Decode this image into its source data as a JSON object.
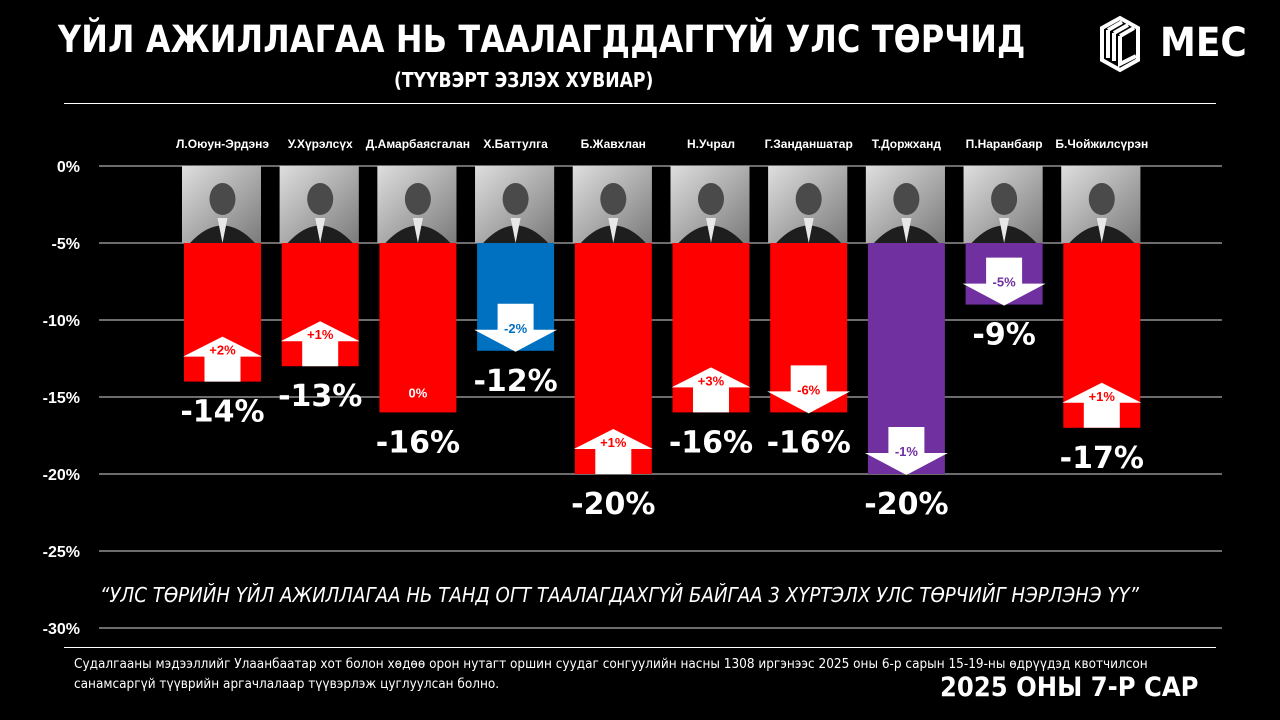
{
  "header": {
    "title": "ҮЙЛ АЖИЛЛАГАА НЬ ТААЛАГДДАГГҮЙ УЛС ТӨРЧИД",
    "subtitle": "(ТҮҮВЭРТ ЭЗЛЭХ ХУВИАР)",
    "logo_text": "MEC"
  },
  "question": "“УЛС ТӨРИЙН ҮЙЛ АЖИЛЛАГАА НЬ ТАНД ОГТ ТААЛАГДАХГҮЙ БАЙГАА 3 ХҮРТЭЛХ УЛС ТӨРЧИЙГ НЭРЛЭНЭ ҮҮ”",
  "footnote": {
    "line1": "Судалгааны мэдээллийг Улаанбаатар хот болон хөдөө орон нутагт оршин суудаг сонгуулийн насны 1308 иргэнээс 2025 оны 6-р сарын 15-19-ны өдрүүдэд квотчилсон",
    "line2": "санамсаргүй түүврийн аргачлалаар түүвэрлэж цуглуулсан болно."
  },
  "date": "2025 ОНЫ 7-Р САР",
  "colors": {
    "red": "#ff0000",
    "blue": "#0070c0",
    "purple": "#7030a0",
    "background": "#000000",
    "white": "#ffffff"
  },
  "chart_data": {
    "type": "bar",
    "title": "ҮЙЛ АЖИЛЛАГАА НЬ ТААЛАГДДАГГҮЙ УЛС ТӨРЧИД",
    "xlabel": "",
    "ylabel": "",
    "ylim": [
      -30,
      0
    ],
    "yticks": [
      0,
      -5,
      -10,
      -15,
      -20,
      -25,
      -30
    ],
    "ytick_labels": [
      "0%",
      "-5%",
      "-10%",
      "-15%",
      "-20%",
      "-25%",
      "-30%"
    ],
    "grid": true,
    "categories": [
      "Л.Оюун-Эрдэнэ",
      "У.Хүрэлсүх",
      "Д.Амарбаясгалан",
      "Х.Баттулга",
      "Б.Жавхлан",
      "Н.Учрал",
      "Г.Занданшатар",
      "Т.Доржханд",
      "П.Наранбаяр",
      "Б.Чойжилсүрэн"
    ],
    "values": [
      -14,
      -13,
      -16,
      -12,
      -20,
      -16,
      -16,
      -20,
      -9,
      -17
    ],
    "value_labels": [
      "-14%",
      "-13%",
      "-16%",
      "-12%",
      "-20%",
      "-16%",
      "-16%",
      "-20%",
      "-9%",
      "-17%"
    ],
    "bar_colors": [
      "red",
      "red",
      "red",
      "blue",
      "red",
      "red",
      "red",
      "purple",
      "purple",
      "red"
    ],
    "change_labels": [
      "+2%",
      "+1%",
      "0%",
      "-2%",
      "+1%",
      "+3%",
      "-6%",
      "-1%",
      "-5%",
      "+1%"
    ],
    "change_direction": [
      "up",
      "up",
      "none",
      "down",
      "up",
      "up",
      "down",
      "down",
      "down",
      "up"
    ],
    "photo_band": [
      0,
      -5
    ]
  }
}
